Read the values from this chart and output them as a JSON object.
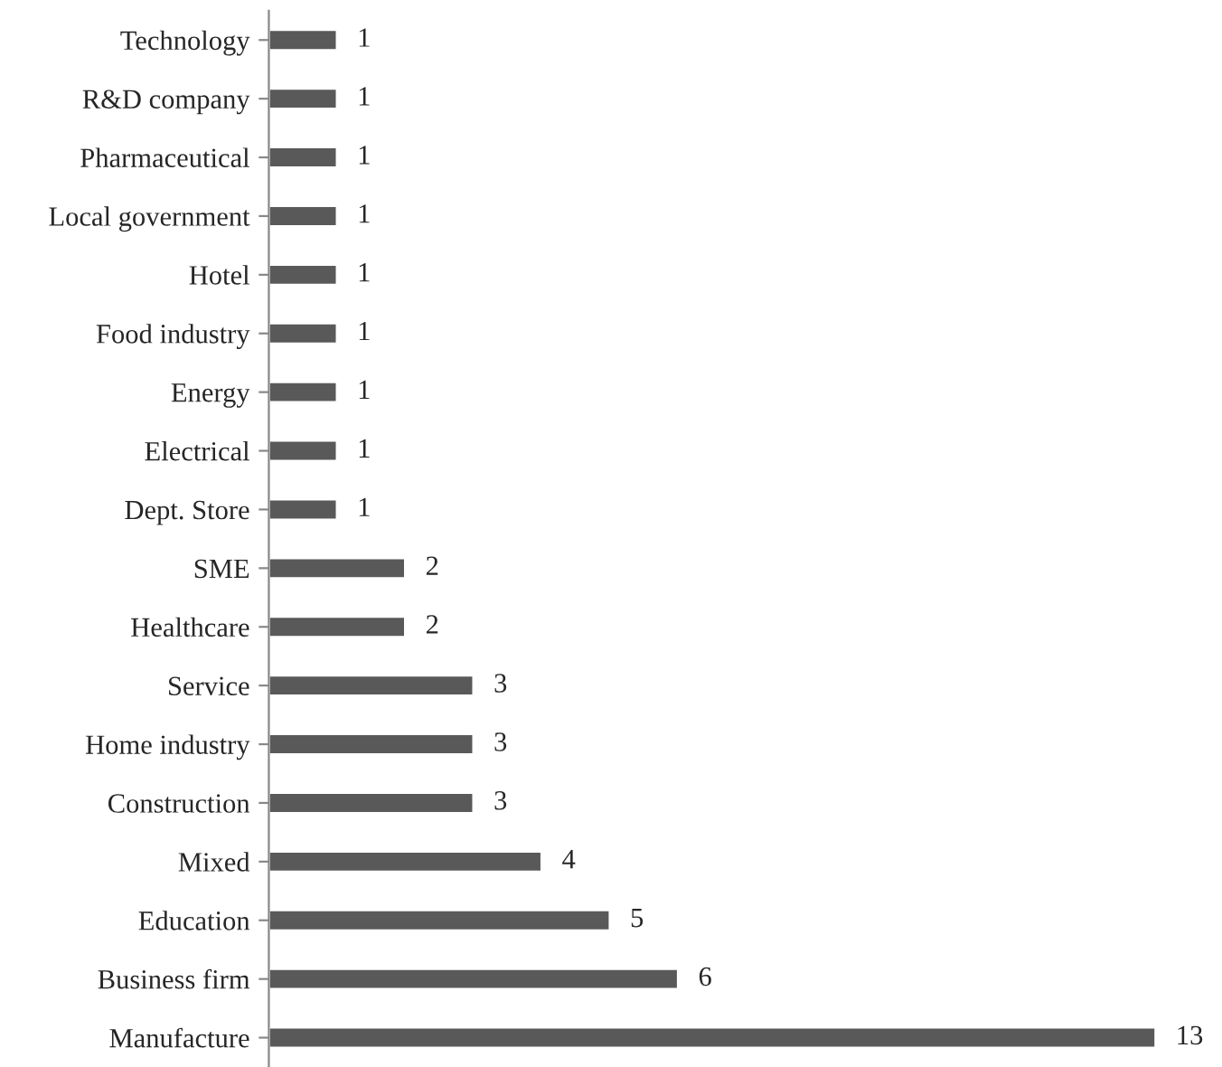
{
  "chart_data": {
    "type": "bar",
    "orientation": "horizontal",
    "categories": [
      "Technology",
      "R&D company",
      "Pharmaceutical",
      "Local government",
      "Hotel",
      "Food industry",
      "Energy",
      "Electrical",
      "Dept. Store",
      "SME",
      "Healthcare",
      "Service",
      "Home industry",
      "Construction",
      "Mixed",
      "Education",
      "Business firm",
      "Manufacture"
    ],
    "values": [
      1,
      1,
      1,
      1,
      1,
      1,
      1,
      1,
      1,
      2,
      2,
      3,
      3,
      3,
      4,
      5,
      6,
      13
    ],
    "color": "#595959",
    "data_labels": true,
    "grid": false,
    "legend": false,
    "tick_labels": "y"
  }
}
